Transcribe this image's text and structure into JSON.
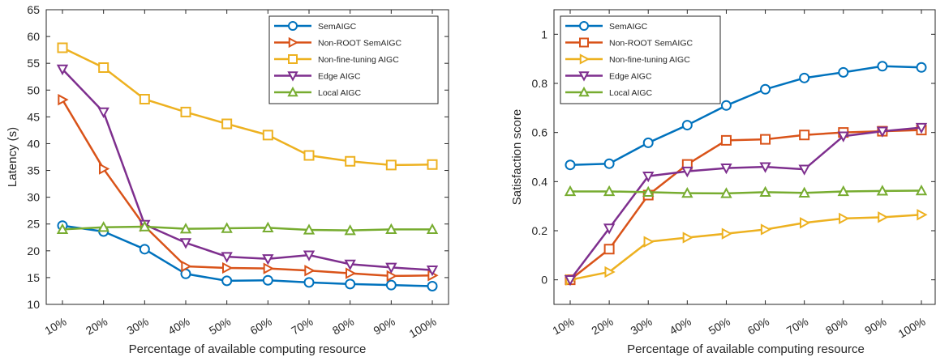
{
  "chart_data": [
    {
      "type": "line",
      "xlabel": "Percentage of available computing resource",
      "ylabel": "Latency (s)",
      "categories": [
        "10%",
        "20%",
        "30%",
        "40%",
        "50%",
        "60%",
        "70%",
        "80%",
        "90%",
        "100%"
      ],
      "ylim": [
        10,
        65
      ],
      "yticks": [
        10,
        15,
        20,
        25,
        30,
        35,
        40,
        45,
        50,
        55,
        60,
        65
      ],
      "grid": false,
      "legend_position": "top-right",
      "series": [
        {
          "name": "SemAIGC",
          "color": "#0072BD",
          "marker": "circle",
          "values": [
            24.7,
            23.6,
            20.3,
            15.7,
            14.4,
            14.5,
            14.1,
            13.8,
            13.6,
            13.4
          ]
        },
        {
          "name": "Non-ROOT SemAIGC",
          "color": "#D95319",
          "marker": "triangle-right",
          "values": [
            48.2,
            35.3,
            24.6,
            17.1,
            16.8,
            16.7,
            16.3,
            15.8,
            15.3,
            15.4
          ]
        },
        {
          "name": "Non-fine-tuning AIGC",
          "color": "#EDB120",
          "marker": "square",
          "values": [
            57.9,
            54.2,
            48.3,
            45.9,
            43.7,
            41.6,
            37.8,
            36.7,
            36.0,
            36.1
          ]
        },
        {
          "name": "Edge AIGC",
          "color": "#7E2F8E",
          "marker": "triangle-down",
          "values": [
            53.9,
            45.9,
            24.9,
            21.5,
            18.9,
            18.5,
            19.2,
            17.5,
            16.9,
            16.4
          ]
        },
        {
          "name": "Local AIGC",
          "color": "#77AC30",
          "marker": "triangle-up",
          "values": [
            24.0,
            24.4,
            24.5,
            24.1,
            24.2,
            24.3,
            23.9,
            23.8,
            24.0,
            24.0
          ]
        }
      ]
    },
    {
      "type": "line",
      "xlabel": "Percentage of available computing resource",
      "ylabel": "Satisfaction score",
      "categories": [
        "10%",
        "20%",
        "30%",
        "40%",
        "50%",
        "60%",
        "70%",
        "80%",
        "90%",
        "100%"
      ],
      "ylim": [
        -0.1,
        1.1
      ],
      "yticks": [
        0,
        0.2,
        0.4,
        0.6,
        0.8,
        1
      ],
      "ytick_labels": [
        "0",
        "0.2",
        "0.4",
        "0.6",
        "0.8",
        "1"
      ],
      "grid": false,
      "legend_position": "top-left",
      "series": [
        {
          "name": "SemAIGC",
          "color": "#0072BD",
          "marker": "circle",
          "values": [
            0.468,
            0.473,
            0.558,
            0.63,
            0.71,
            0.776,
            0.822,
            0.845,
            0.87,
            0.865
          ]
        },
        {
          "name": "Non-ROOT SemAIGC",
          "color": "#D95319",
          "marker": "square",
          "values": [
            0.0,
            0.125,
            0.345,
            0.47,
            0.568,
            0.572,
            0.59,
            0.6,
            0.605,
            0.61
          ]
        },
        {
          "name": "Non-fine-tuning AIGC",
          "color": "#EDB120",
          "marker": "triangle-right",
          "values": [
            0.0,
            0.032,
            0.155,
            0.172,
            0.188,
            0.205,
            0.232,
            0.25,
            0.255,
            0.265
          ]
        },
        {
          "name": "Edge AIGC",
          "color": "#7E2F8E",
          "marker": "triangle-down",
          "values": [
            0.0,
            0.21,
            0.422,
            0.442,
            0.455,
            0.46,
            0.45,
            0.585,
            0.605,
            0.62
          ]
        },
        {
          "name": "Local AIGC",
          "color": "#77AC30",
          "marker": "triangle-up",
          "values": [
            0.36,
            0.36,
            0.357,
            0.353,
            0.352,
            0.357,
            0.354,
            0.36,
            0.362,
            0.363
          ]
        }
      ]
    }
  ]
}
